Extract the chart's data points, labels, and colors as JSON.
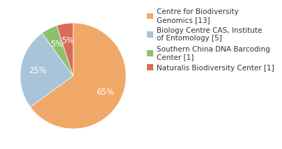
{
  "labels": [
    "Centre for Biodiversity\nGenomics [13]",
    "Biology Centre CAS, Institute\nof Entomology [5]",
    "Southern China DNA Barcoding\nCenter [1]",
    "Naturalis Biodiversity Center [1]"
  ],
  "values": [
    65,
    25,
    5,
    5
  ],
  "colors": [
    "#F0A868",
    "#A8C4D8",
    "#8DC06C",
    "#D96B5A"
  ],
  "startangle": 90,
  "background_color": "#ffffff",
  "text_color": "#333333",
  "legend_fontsize": 7.5,
  "pct_fontsize": 8.5
}
